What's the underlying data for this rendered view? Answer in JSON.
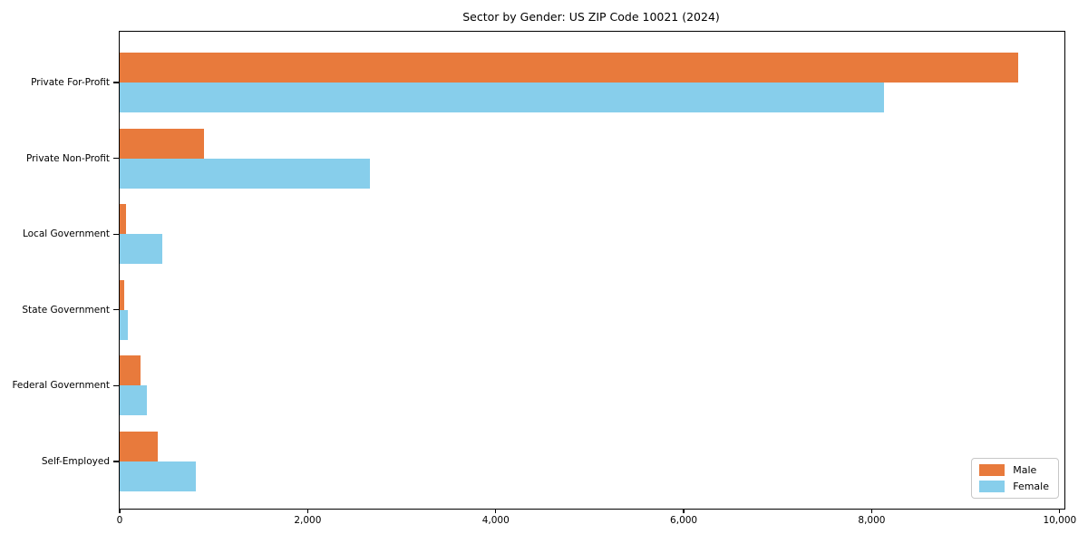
{
  "title": "Sector by Gender: US ZIP Code 10021 (2024)",
  "chart_data": {
    "type": "bar",
    "orientation": "horizontal",
    "title": "Sector by Gender: US ZIP Code 10021 (2024)",
    "categories": [
      "Private For-Profit",
      "Private Non-Profit",
      "Local Government",
      "State Government",
      "Federal Government",
      "Self-Employed"
    ],
    "series": [
      {
        "name": "Male",
        "color": "#e87a3c",
        "values": [
          9560,
          900,
          67,
          48,
          220,
          405
        ]
      },
      {
        "name": "Female",
        "color": "#87ceeb",
        "values": [
          8130,
          2660,
          450,
          87,
          290,
          810
        ]
      }
    ],
    "xlabel": "",
    "ylabel": "",
    "xlim": [
      0,
      10050
    ],
    "xticks": [
      0,
      2000,
      4000,
      6000,
      8000,
      10000
    ],
    "xtick_labels": [
      "0",
      "2,000",
      "4,000",
      "6,000",
      "8,000",
      "10,000"
    ],
    "grid": false,
    "legend_position": "lower right",
    "background_color": "#ffffff",
    "text_color": "#000000"
  },
  "legend": {
    "items": [
      {
        "label": "Male",
        "color": "#e87a3c"
      },
      {
        "label": "Female",
        "color": "#87ceeb"
      }
    ]
  }
}
